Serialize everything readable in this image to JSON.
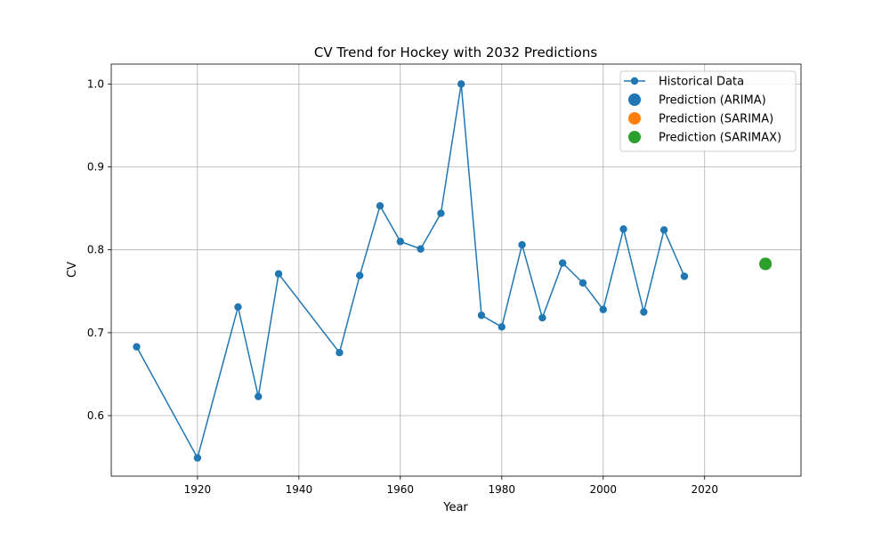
{
  "chart_data": {
    "type": "line",
    "title": "CV Trend for Hockey with 2032 Predictions",
    "xlabel": "Year",
    "ylabel": "CV",
    "xlim": [
      1903,
      2039
    ],
    "ylim": [
      0.527,
      1.024
    ],
    "xticks": [
      1920,
      1940,
      1960,
      1980,
      2000,
      2020
    ],
    "yticks": [
      0.6,
      0.7,
      0.8,
      0.9,
      1.0
    ],
    "ytick_labels": [
      "0.6",
      "0.7",
      "0.8",
      "0.9",
      "1.0"
    ],
    "grid": true,
    "legend_position": "top-right",
    "series": [
      {
        "name": "Historical Data",
        "type": "line",
        "color": "#1f77b4",
        "x": [
          1908,
          1920,
          1928,
          1932,
          1936,
          1948,
          1952,
          1956,
          1960,
          1964,
          1968,
          1972,
          1976,
          1980,
          1984,
          1988,
          1992,
          1996,
          2000,
          2004,
          2008,
          2012,
          2016
        ],
        "y": [
          0.683,
          0.549,
          0.731,
          0.623,
          0.771,
          0.676,
          0.769,
          0.853,
          0.81,
          0.801,
          0.844,
          1.0,
          0.721,
          0.707,
          0.806,
          0.718,
          0.784,
          0.76,
          0.728,
          0.825,
          0.725,
          0.824,
          0.768
        ]
      },
      {
        "name": "Prediction (ARIMA)",
        "type": "scatter",
        "color": "#1f77b4",
        "x": [
          2032
        ],
        "y": [
          0.783
        ]
      },
      {
        "name": "Prediction (SARIMA)",
        "type": "scatter",
        "color": "#ff7f0e",
        "x": [
          2032
        ],
        "y": [
          0.783
        ]
      },
      {
        "name": "Prediction (SARIMAX)",
        "type": "scatter",
        "color": "#2ca02c",
        "x": [
          2032
        ],
        "y": [
          0.783
        ]
      }
    ]
  }
}
